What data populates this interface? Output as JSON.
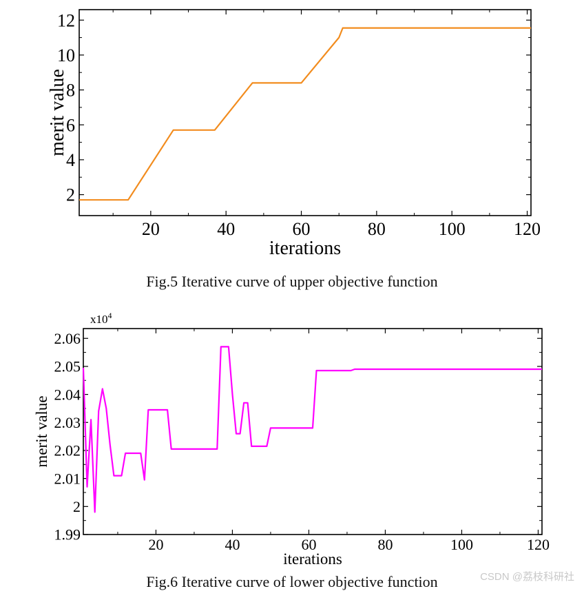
{
  "chart_data": [
    {
      "type": "line",
      "title": "",
      "xlabel": "iterations",
      "ylabel": "merit value",
      "xlim": [
        1,
        121
      ],
      "ylim": [
        0.8,
        12.6
      ],
      "xticks": [
        20,
        40,
        60,
        80,
        100,
        120
      ],
      "yticks": [
        2,
        4,
        6,
        8,
        10,
        12
      ],
      "series": [
        {
          "name": "upper objective",
          "color": "#F28C1E",
          "x": [
            1,
            14,
            26,
            37,
            47,
            60,
            70,
            71,
            121
          ],
          "y": [
            1.7,
            1.7,
            5.7,
            5.7,
            8.4,
            8.4,
            11.0,
            11.55,
            11.55
          ]
        }
      ],
      "caption": "Fig.5  Iterative curve of upper objective function"
    },
    {
      "type": "line",
      "title": "",
      "xlabel": "iterations",
      "ylabel": "merit value",
      "scale_label": "x10",
      "scale_exp": "4",
      "xlim": [
        1,
        121
      ],
      "ylim": [
        1.99,
        2.0635
      ],
      "xticks": [
        20,
        40,
        60,
        80,
        100,
        120
      ],
      "yticks": [
        1.99,
        2,
        2.01,
        2.02,
        2.03,
        2.04,
        2.05,
        2.06
      ],
      "ytick_labels": [
        "1.99",
        "2",
        "2.01",
        "2.02",
        "2.03",
        "2.04",
        "2.05",
        "2.06"
      ],
      "series": [
        {
          "name": "lower objective",
          "color": "#FF00FF",
          "x": [
            1,
            2,
            3,
            4,
            5,
            6,
            7,
            8,
            9,
            10,
            11,
            12,
            13,
            14,
            15,
            16,
            17,
            18,
            19,
            20,
            21,
            22,
            23,
            24,
            25,
            30,
            36,
            37,
            38,
            39,
            40,
            41,
            42,
            43,
            44,
            45,
            46,
            48,
            49,
            50,
            51,
            60,
            61,
            62,
            63,
            70,
            71,
            72,
            73,
            121
          ],
          "y": [
            2.0495,
            2.007,
            2.031,
            1.998,
            2.034,
            2.042,
            2.035,
            2.022,
            2.011,
            2.011,
            2.011,
            2.019,
            2.019,
            2.019,
            2.019,
            2.019,
            2.0095,
            2.0345,
            2.0345,
            2.0345,
            2.0345,
            2.0345,
            2.0345,
            2.0205,
            2.0205,
            2.0205,
            2.0205,
            2.057,
            2.057,
            2.057,
            2.04,
            2.026,
            2.026,
            2.037,
            2.037,
            2.0215,
            2.0215,
            2.0215,
            2.0215,
            2.028,
            2.028,
            2.028,
            2.028,
            2.0485,
            2.0485,
            2.0485,
            2.0485,
            2.049,
            2.049,
            2.049
          ]
        }
      ],
      "caption": "Fig.6  Iterative curve of lower objective function"
    }
  ],
  "watermark": "CSDN @荔枝科研社"
}
